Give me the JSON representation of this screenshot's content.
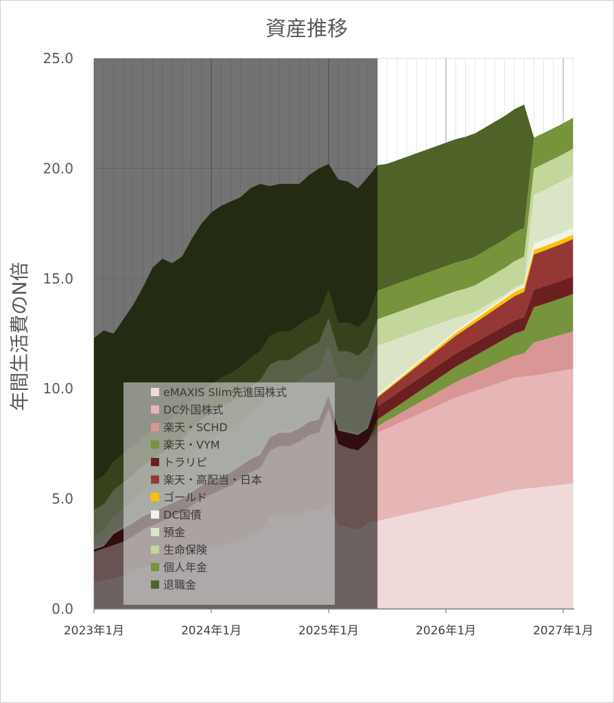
{
  "chart_data": {
    "type": "area",
    "title": "資産推移",
    "xlabel": "",
    "ylabel": "年間生活費のN倍",
    "ylim": [
      0,
      25
    ],
    "y_ticks": [
      "0.0",
      "5.0",
      "10.0",
      "15.0",
      "20.0",
      "25.0"
    ],
    "x_ticks": [
      "2023年1月",
      "2024年1月",
      "2025年1月",
      "2026年1月",
      "2027年1月"
    ],
    "x_range": [
      "2023-01",
      "2027-01"
    ],
    "stacked": true,
    "grid": true,
    "legend_position": "inside-left",
    "shaded_region": {
      "from": "2023-01",
      "to": "2025-06",
      "note_color": "#6e6e6e"
    },
    "dates": [
      "2023-01",
      "2023-02",
      "2023-03",
      "2023-04",
      "2023-05",
      "2023-06",
      "2023-07",
      "2023-08",
      "2023-09",
      "2023-10",
      "2023-11",
      "2023-12",
      "2024-01",
      "2024-02",
      "2024-03",
      "2024-04",
      "2024-05",
      "2024-06",
      "2024-07",
      "2024-08",
      "2024-09",
      "2024-10",
      "2024-11",
      "2024-12",
      "2025-01",
      "2025-02",
      "2025-03",
      "2025-04",
      "2025-05",
      "2025-06",
      "2025-07",
      "2025-08",
      "2025-09",
      "2025-10",
      "2025-11",
      "2025-12",
      "2026-01",
      "2026-02",
      "2026-03",
      "2026-04",
      "2026-05",
      "2026-06",
      "2026-07",
      "2026-08",
      "2026-09",
      "2026-10",
      "2026-11",
      "2026-12",
      "2027-01",
      "2027-02"
    ],
    "series": [
      {
        "name": "eMAXIS Slim先進国株式",
        "color": "#f2d9d9",
        "values": [
          1.2,
          1.3,
          1.4,
          1.5,
          1.7,
          1.9,
          2.0,
          2.1,
          2.2,
          2.3,
          2.5,
          2.7,
          2.8,
          2.9,
          3.0,
          3.2,
          3.4,
          3.5,
          4.2,
          4.3,
          4.2,
          4.3,
          4.5,
          4.5,
          4.8,
          3.8,
          3.7,
          3.6,
          3.9,
          4.0,
          4.1,
          4.2,
          4.3,
          4.4,
          4.5,
          4.6,
          4.7,
          4.8,
          4.9,
          5.0,
          5.1,
          5.2,
          5.3,
          5.4,
          5.45,
          5.5,
          5.55,
          5.6,
          5.65,
          5.7
        ]
      },
      {
        "name": "DC外国株式",
        "color": "#e6b5b5",
        "values": [
          1.4,
          1.45,
          1.5,
          1.55,
          1.6,
          1.7,
          1.8,
          1.9,
          2.0,
          2.1,
          2.2,
          2.3,
          2.4,
          2.5,
          2.6,
          2.7,
          2.8,
          2.9,
          3.0,
          3.1,
          3.2,
          3.3,
          3.4,
          3.5,
          4.3,
          3.7,
          3.6,
          3.6,
          3.7,
          4.0,
          4.1,
          4.2,
          4.3,
          4.4,
          4.5,
          4.6,
          4.7,
          4.8,
          4.85,
          4.9,
          4.95,
          5.0,
          5.05,
          5.1,
          5.1,
          5.1,
          5.12,
          5.15,
          5.18,
          5.2
        ]
      },
      {
        "name": "楽天・SCHD",
        "color": "#da9595",
        "values": [
          0,
          0,
          0,
          0,
          0,
          0,
          0,
          0,
          0,
          0,
          0,
          0,
          0,
          0,
          0,
          0,
          0,
          0,
          0,
          0,
          0,
          0,
          0,
          0,
          0,
          0,
          0,
          0,
          0,
          0.3,
          0.35,
          0.4,
          0.45,
          0.5,
          0.55,
          0.6,
          0.65,
          0.7,
          0.75,
          0.8,
          0.85,
          0.9,
          0.95,
          1.0,
          1.05,
          1.5,
          1.55,
          1.6,
          1.65,
          1.7
        ]
      },
      {
        "name": "楽天・VYM",
        "color": "#77933c",
        "values": [
          0,
          0,
          0,
          0,
          0,
          0,
          0,
          0,
          0,
          0,
          0,
          0,
          0,
          0,
          0,
          0,
          0,
          0,
          0,
          0,
          0,
          0,
          0,
          0,
          0,
          0,
          0,
          0,
          0,
          0.3,
          0.35,
          0.4,
          0.45,
          0.5,
          0.55,
          0.6,
          0.65,
          0.7,
          0.75,
          0.8,
          0.85,
          0.9,
          0.95,
          1.0,
          1.05,
          1.6,
          1.62,
          1.64,
          1.66,
          1.7
        ]
      },
      {
        "name": "トラリピ",
        "color": "#6b2020",
        "values": [
          0.1,
          0.1,
          0.5,
          0.6,
          0.6,
          0.6,
          0.6,
          0.6,
          0.6,
          0.6,
          0.6,
          0.6,
          0.6,
          0.6,
          0.6,
          0.6,
          0.6,
          0.6,
          0.6,
          0.6,
          0.6,
          0.6,
          0.6,
          0.6,
          0.6,
          0.6,
          0.7,
          0.7,
          0.6,
          0.6,
          0.6,
          0.6,
          0.6,
          0.6,
          0.6,
          0.6,
          0.6,
          0.6,
          0.6,
          0.6,
          0.6,
          0.6,
          0.6,
          0.6,
          0.6,
          0.8,
          0.8,
          0.8,
          0.8,
          0.8
        ]
      },
      {
        "name": "楽天・高配当・日本",
        "color": "#953735",
        "values": [
          0,
          0,
          0,
          0,
          0,
          0,
          0,
          0,
          0,
          0,
          0,
          0,
          0,
          0,
          0,
          0,
          0,
          0,
          0,
          0,
          0,
          0,
          0,
          0,
          0,
          0,
          0,
          0,
          0,
          0.4,
          0.45,
          0.5,
          0.55,
          0.6,
          0.65,
          0.7,
          0.75,
          0.8,
          0.85,
          0.9,
          0.95,
          1.0,
          1.05,
          1.1,
          1.15,
          1.6,
          1.62,
          1.64,
          1.66,
          1.7
        ]
      },
      {
        "name": "ゴールド",
        "color": "#ffc000",
        "values": [
          0,
          0,
          0,
          0,
          0,
          0,
          0,
          0,
          0,
          0,
          0,
          0,
          0,
          0,
          0,
          0,
          0,
          0,
          0,
          0,
          0,
          0,
          0,
          0,
          0,
          0,
          0,
          0,
          0,
          0.05,
          0.06,
          0.07,
          0.08,
          0.09,
          0.1,
          0.11,
          0.12,
          0.13,
          0.14,
          0.15,
          0.16,
          0.17,
          0.18,
          0.19,
          0.2,
          0.2,
          0.2,
          0.2,
          0.2,
          0.2
        ]
      },
      {
        "name": "DC国債",
        "color": "#f0f3e6",
        "values": [
          0.1,
          0.1,
          0.1,
          0.1,
          0.1,
          0.1,
          0.1,
          0.1,
          0.1,
          0.1,
          0.1,
          0.1,
          0.1,
          0.1,
          0.1,
          0.1,
          0.1,
          0.1,
          0.1,
          0.1,
          0.1,
          0.1,
          0.1,
          0.1,
          0.1,
          0.1,
          0.1,
          0.1,
          0.1,
          0.1,
          0.1,
          0.1,
          0.1,
          0.1,
          0.1,
          0.1,
          0.1,
          0.1,
          0.1,
          0.1,
          0.1,
          0.1,
          0.1,
          0.1,
          0.1,
          0.3,
          0.3,
          0.3,
          0.3,
          0.3
        ]
      },
      {
        "name": "預金",
        "color": "#dbe5c5",
        "values": [
          0.5,
          0.6,
          0.7,
          0.8,
          0.9,
          1.0,
          1.1,
          1.2,
          1.3,
          1.4,
          1.6,
          1.7,
          1.8,
          1.9,
          1.9,
          1.9,
          2.0,
          2.1,
          2.0,
          2.0,
          2.0,
          2.1,
          2.1,
          2.2,
          2.2,
          2.3,
          2.4,
          2.3,
          2.4,
          2.2,
          2.0,
          1.8,
          1.6,
          1.4,
          1.2,
          1.0,
          0.8,
          0.6,
          0.4,
          0.25,
          0.2,
          0.15,
          0.1,
          0.1,
          0.1,
          2.2,
          2.25,
          2.3,
          2.35,
          2.4
        ]
      },
      {
        "name": "生命保険",
        "color": "#c3d69b",
        "values": [
          1.2,
          1.2,
          1.2,
          1.2,
          1.2,
          1.2,
          1.2,
          1.2,
          1.2,
          1.2,
          1.2,
          1.2,
          1.2,
          1.2,
          1.2,
          1.2,
          1.2,
          1.2,
          1.2,
          1.2,
          1.2,
          1.2,
          1.2,
          1.2,
          1.2,
          1.2,
          1.2,
          1.2,
          1.2,
          1.2,
          1.2,
          1.2,
          1.2,
          1.2,
          1.2,
          1.2,
          1.2,
          1.2,
          1.2,
          1.2,
          1.2,
          1.2,
          1.2,
          1.2,
          1.2,
          1.2,
          1.2,
          1.2,
          1.2,
          1.2
        ]
      },
      {
        "name": "個人年金",
        "color": "#77933c",
        "values": [
          1.3,
          1.3,
          1.3,
          1.3,
          1.3,
          1.3,
          1.3,
          1.3,
          1.3,
          1.3,
          1.3,
          1.3,
          1.3,
          1.3,
          1.3,
          1.3,
          1.3,
          1.3,
          1.3,
          1.3,
          1.3,
          1.3,
          1.3,
          1.3,
          1.3,
          1.3,
          1.3,
          1.3,
          1.3,
          1.3,
          1.3,
          1.3,
          1.3,
          1.3,
          1.3,
          1.3,
          1.3,
          1.3,
          1.3,
          1.3,
          1.3,
          1.3,
          1.3,
          1.3,
          1.3,
          1.4,
          1.4,
          1.4,
          1.4,
          1.4
        ]
      },
      {
        "name": "退職金",
        "color": "#4f6228",
        "values": [
          6.5,
          6.6,
          5.8,
          6.1,
          6.4,
          6.8,
          7.4,
          7.5,
          7.0,
          7.0,
          7.3,
          7.6,
          7.8,
          7.8,
          7.8,
          7.7,
          7.7,
          7.6,
          6.8,
          6.7,
          6.7,
          6.4,
          6.5,
          6.6,
          5.7,
          6.5,
          6.4,
          6.3,
          6.4,
          5.7,
          5.6,
          5.6,
          5.6,
          5.6,
          5.6,
          5.6,
          5.6,
          5.6,
          5.6,
          5.6,
          5.6,
          5.6,
          5.6,
          5.6,
          5.6,
          0,
          0,
          0,
          0,
          0
        ]
      }
    ]
  }
}
